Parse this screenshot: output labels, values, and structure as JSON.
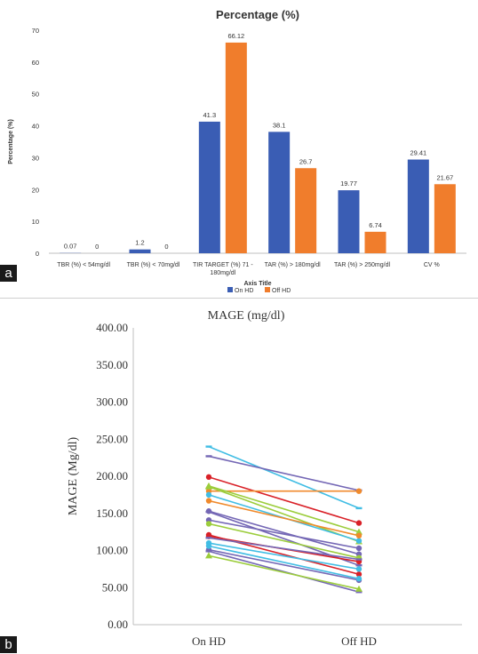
{
  "panel_a": {
    "label": "a",
    "chart_data": {
      "type": "bar",
      "title": "Percentage (%)",
      "xlabel": "Axis Title",
      "ylabel": "Percentage (%)",
      "ylim": [
        0,
        70
      ],
      "yticks": [
        "0",
        "10",
        "20",
        "30",
        "40",
        "50",
        "60",
        "70"
      ],
      "categories": [
        [
          "TBR (%) < 54mg/dl"
        ],
        [
          "TBR (%) < 70mg/dl"
        ],
        [
          "TIR TARGET (%) 71 -",
          "180mg/dl"
        ],
        [
          "TAR (%) > 180mg/dl"
        ],
        [
          "TAR (%) > 250mg/dl"
        ],
        [
          "CV %"
        ]
      ],
      "series": [
        {
          "name": "On HD",
          "color": "#3a5db4",
          "values": [
            0.07,
            1.2,
            41.3,
            38.1,
            19.77,
            29.41
          ],
          "labels": [
            "0.07",
            "1.2",
            "41.3",
            "38.1",
            "19.77",
            "29.41"
          ]
        },
        {
          "name": "Off HD",
          "color": "#f07d2c",
          "values": [
            0,
            0,
            66.12,
            26.7,
            6.74,
            21.67
          ],
          "labels": [
            "0",
            "0",
            "66.12",
            "26.7",
            "6.74",
            "21.67"
          ]
        }
      ],
      "legend": "bottom"
    }
  },
  "panel_b": {
    "label": "b",
    "chart_data": {
      "type": "line",
      "title": "MAGE (mg/dl)",
      "ylabel": "MAGE (Mg/dl)",
      "ylim": [
        0,
        400
      ],
      "yticks": [
        "0.00",
        "50.00",
        "100.00",
        "150.00",
        "200.00",
        "250.00",
        "300.00",
        "350.00",
        "400.00"
      ],
      "categories": [
        "On HD",
        "Off HD"
      ],
      "series": [
        {
          "color": "#41bde4",
          "marker": "dash",
          "values": [
            240,
            157
          ]
        },
        {
          "color": "#7467b5",
          "marker": "dash",
          "values": [
            227,
            181
          ]
        },
        {
          "color": "#d92128",
          "marker": "circle",
          "values": [
            199,
            137
          ]
        },
        {
          "color": "#f08a2c",
          "marker": "circle",
          "values": [
            180,
            180
          ]
        },
        {
          "color": "#9ccd3c",
          "marker": "triangle",
          "values": [
            187,
            125
          ]
        },
        {
          "color": "#9ccd3c",
          "marker": "triangle",
          "values": [
            186,
            112
          ]
        },
        {
          "color": "#41bde4",
          "marker": "circle",
          "values": [
            175,
            113
          ]
        },
        {
          "color": "#f08a2c",
          "marker": "circle",
          "values": [
            167,
            120
          ]
        },
        {
          "color": "#7467b5",
          "marker": "circle",
          "values": [
            153,
            95
          ]
        },
        {
          "color": "#7467b5",
          "marker": "dash",
          "values": [
            152,
            80
          ]
        },
        {
          "color": "#7467b5",
          "marker": "circle",
          "values": [
            141,
            103
          ]
        },
        {
          "color": "#9ccd3c",
          "marker": "circle",
          "values": [
            136,
            90
          ]
        },
        {
          "color": "#d92128",
          "marker": "circle",
          "values": [
            121,
            68
          ]
        },
        {
          "color": "#d92128",
          "marker": "circle",
          "values": [
            119,
            85
          ]
        },
        {
          "color": "#7467b5",
          "marker": "dash",
          "values": [
            117,
            88
          ]
        },
        {
          "color": "#41bde4",
          "marker": "circle",
          "values": [
            110,
            75
          ]
        },
        {
          "color": "#7467b5",
          "marker": "circle",
          "values": [
            101,
            60
          ]
        },
        {
          "color": "#7467b5",
          "marker": "dash",
          "values": [
            99,
            44
          ]
        },
        {
          "color": "#9ccd3c",
          "marker": "triangle",
          "values": [
            93,
            48
          ]
        },
        {
          "color": "#41bde4",
          "marker": "circle",
          "values": [
            106,
            62
          ]
        }
      ]
    }
  }
}
